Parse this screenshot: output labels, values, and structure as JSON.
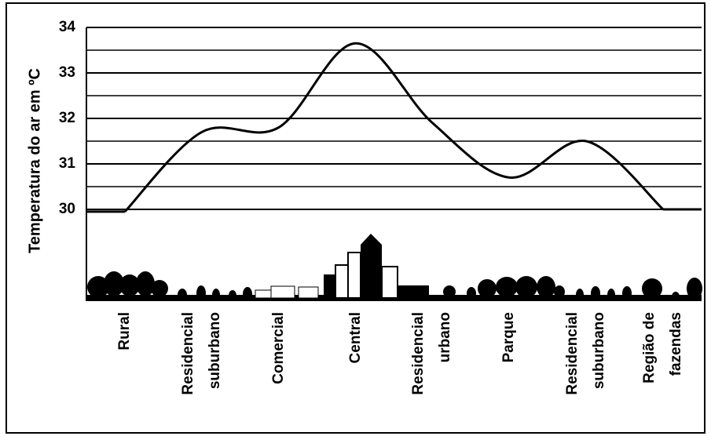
{
  "chart_data": {
    "type": "line",
    "y_label": "Temperatura do ar em ºC",
    "categories": [
      "Rural",
      "Residencial suburbano",
      "Comercial",
      "Central",
      "Residencial urbano",
      "Parque",
      "Residencial suburbano",
      "Região de fazendas"
    ],
    "values": [
      29.95,
      31.7,
      31.8,
      33.65,
      31.9,
      30.7,
      31.5,
      30.0
    ],
    "color": "#000000",
    "ylim": [
      30,
      34
    ],
    "yticks": [
      30,
      31,
      32,
      33,
      34
    ],
    "minor_yticks": [
      30.5,
      31.5,
      32.5,
      33.5
    ],
    "grid": true
  }
}
